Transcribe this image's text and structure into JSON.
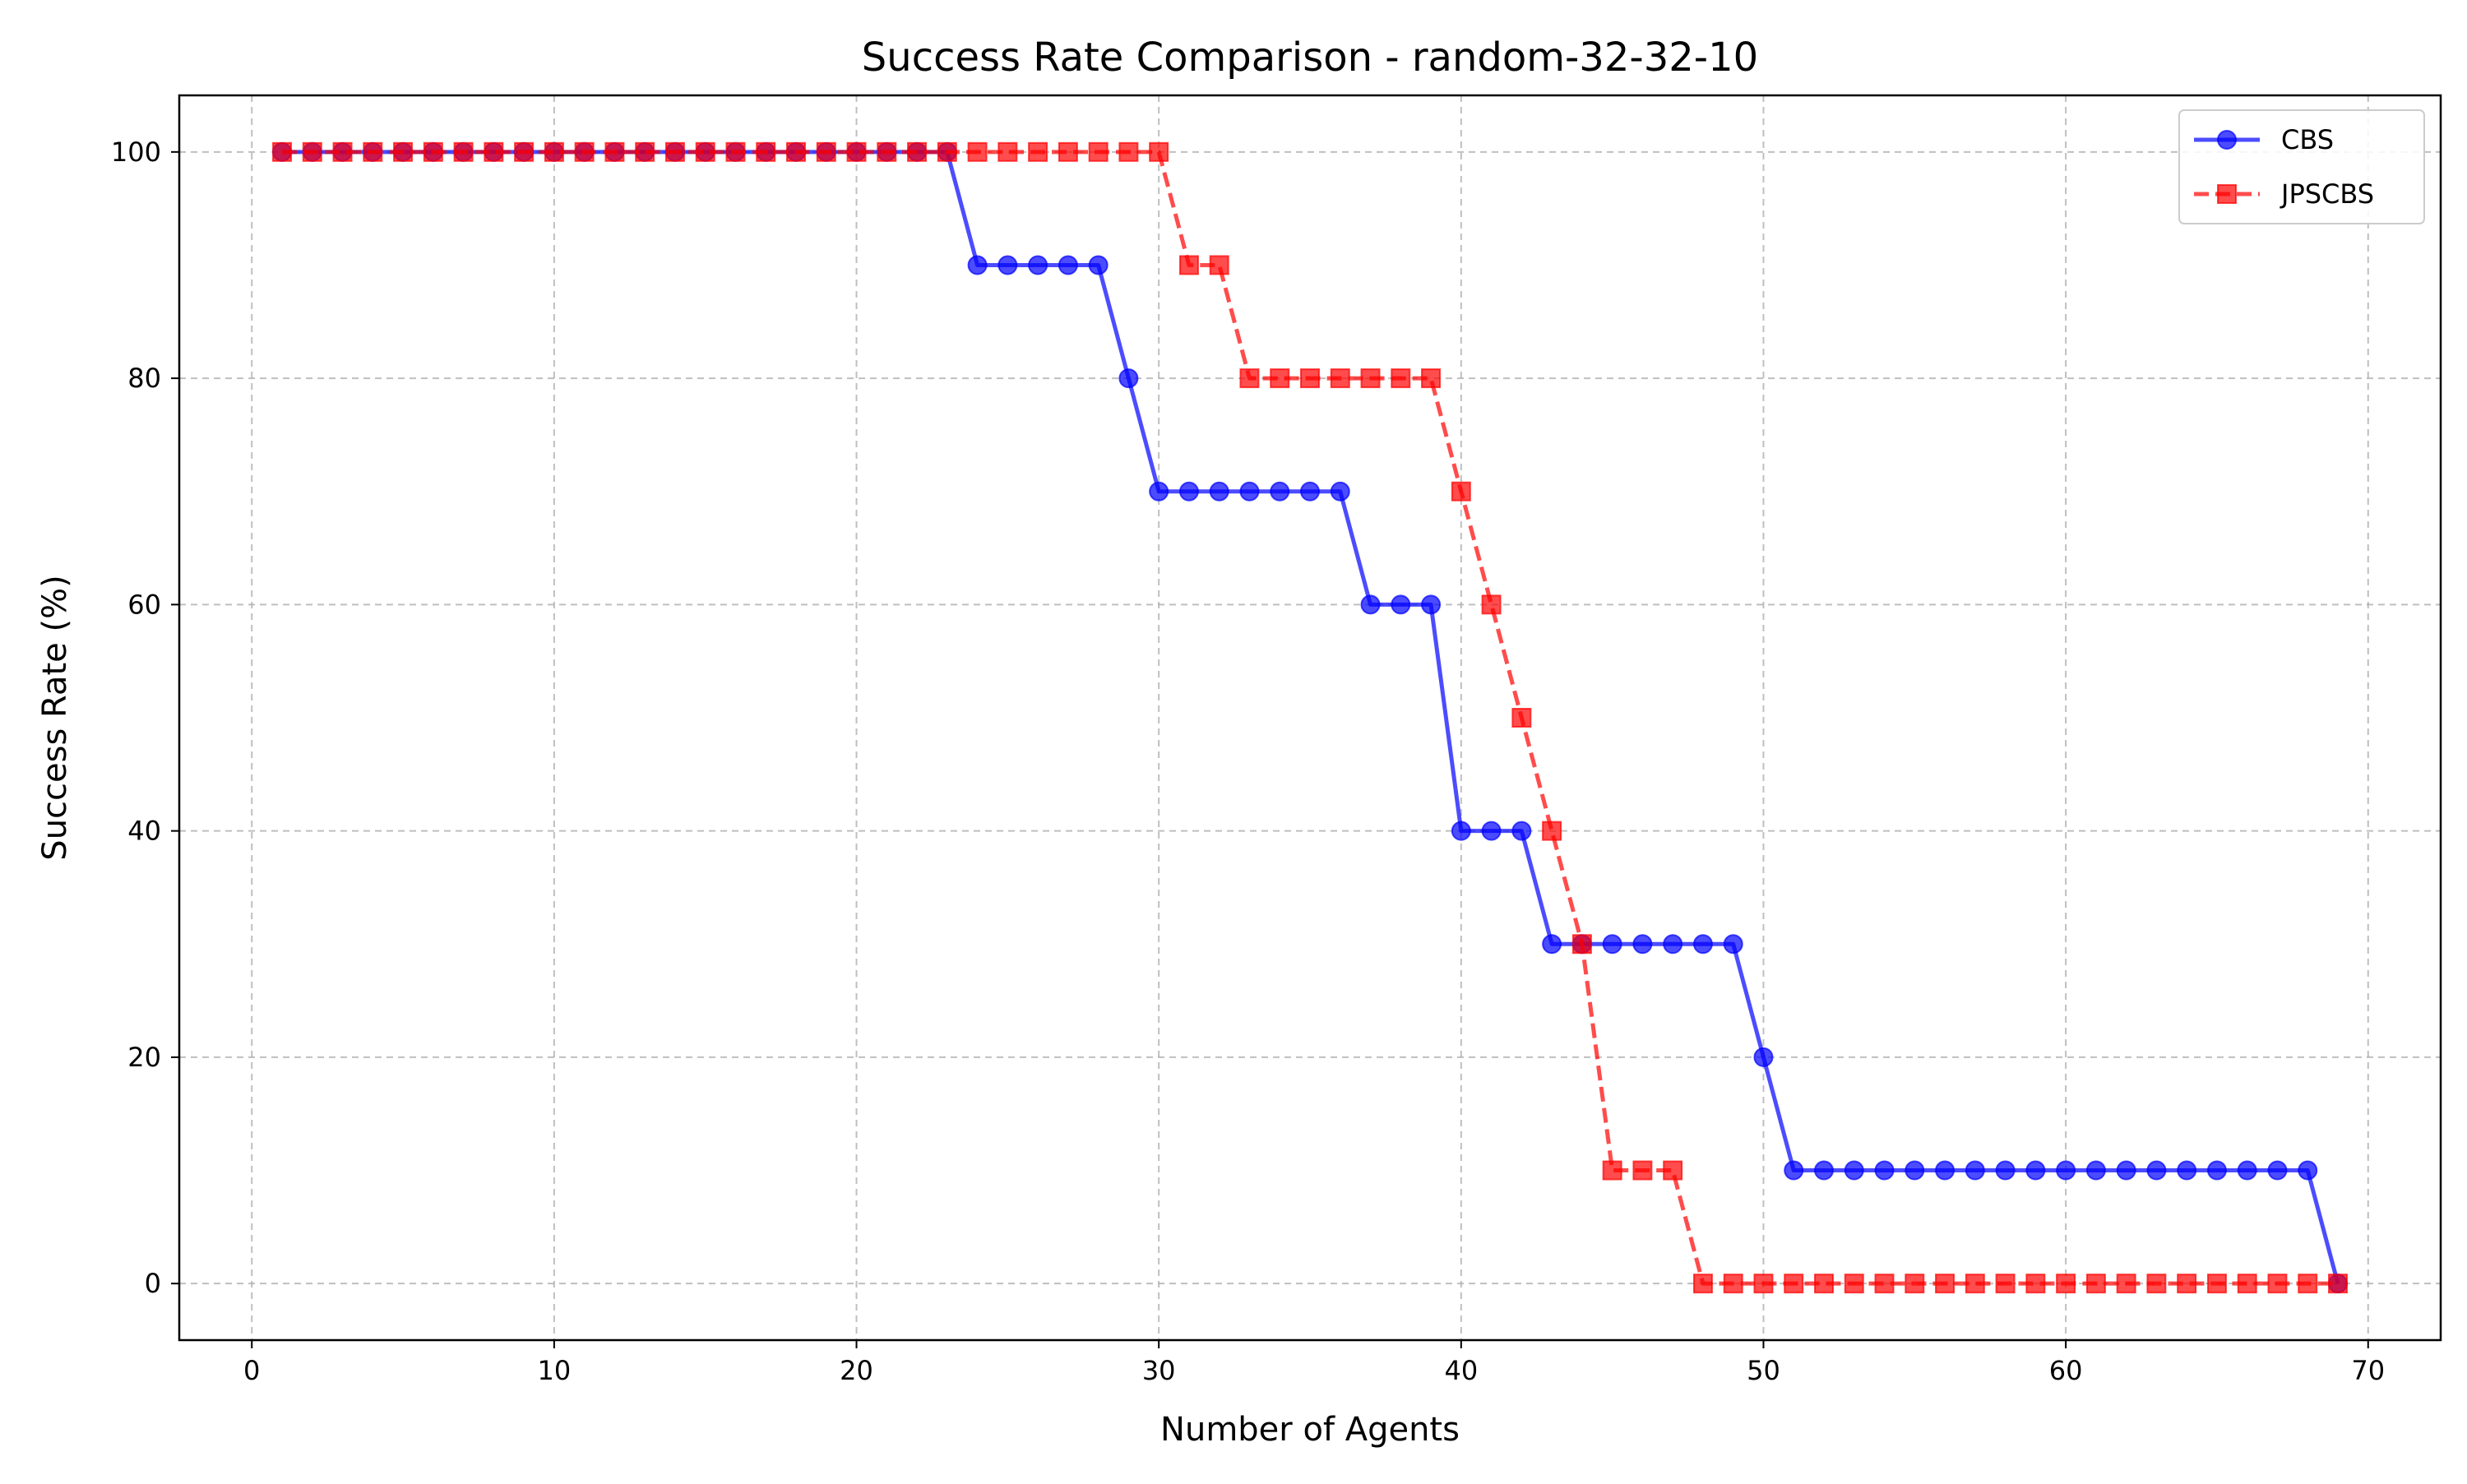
{
  "chart_data": {
    "type": "line",
    "title": "Success Rate Comparison - random-32-32-10",
    "xlabel": "Number of Agents",
    "ylabel": "Success Rate (%)",
    "xlim": [
      -2.4,
      72.4
    ],
    "ylim": [
      -5,
      105
    ],
    "xticks": [
      0,
      10,
      20,
      30,
      40,
      50,
      60,
      70
    ],
    "yticks": [
      0,
      20,
      40,
      60,
      80,
      100
    ],
    "grid": true,
    "legend_position": "top-right",
    "x": [
      1,
      2,
      3,
      4,
      5,
      6,
      7,
      8,
      9,
      10,
      11,
      12,
      13,
      14,
      15,
      16,
      17,
      18,
      19,
      20,
      21,
      22,
      23,
      24,
      25,
      26,
      27,
      28,
      29,
      30,
      31,
      32,
      33,
      34,
      35,
      36,
      37,
      38,
      39,
      40,
      41,
      42,
      43,
      44,
      45,
      46,
      47,
      48,
      49,
      50,
      51,
      52,
      53,
      54,
      55,
      56,
      57,
      58,
      59,
      60,
      61,
      62,
      63,
      64,
      65,
      66,
      67,
      68,
      69
    ],
    "series": [
      {
        "name": "CBS",
        "color": "#0000ff",
        "marker": "circle",
        "line_style": "solid",
        "values": [
          100,
          100,
          100,
          100,
          100,
          100,
          100,
          100,
          100,
          100,
          100,
          100,
          100,
          100,
          100,
          100,
          100,
          100,
          100,
          100,
          100,
          100,
          100,
          90,
          90,
          90,
          90,
          90,
          80,
          70,
          70,
          70,
          70,
          70,
          70,
          70,
          60,
          60,
          60,
          40,
          40,
          40,
          30,
          30,
          30,
          30,
          30,
          30,
          30,
          20,
          10,
          10,
          10,
          10,
          10,
          10,
          10,
          10,
          10,
          10,
          10,
          10,
          10,
          10,
          10,
          10,
          10,
          10,
          0
        ]
      },
      {
        "name": "JPSCBS",
        "color": "#ff0000",
        "marker": "square",
        "line_style": "dashed",
        "values": [
          100,
          100,
          100,
          100,
          100,
          100,
          100,
          100,
          100,
          100,
          100,
          100,
          100,
          100,
          100,
          100,
          100,
          100,
          100,
          100,
          100,
          100,
          100,
          100,
          100,
          100,
          100,
          100,
          100,
          100,
          90,
          90,
          80,
          80,
          80,
          80,
          80,
          80,
          80,
          70,
          60,
          50,
          40,
          30,
          10,
          10,
          10,
          0,
          0,
          0,
          0,
          0,
          0,
          0,
          0,
          0,
          0,
          0,
          0,
          0,
          0,
          0,
          0,
          0,
          0,
          0,
          0,
          0,
          0
        ]
      }
    ]
  }
}
